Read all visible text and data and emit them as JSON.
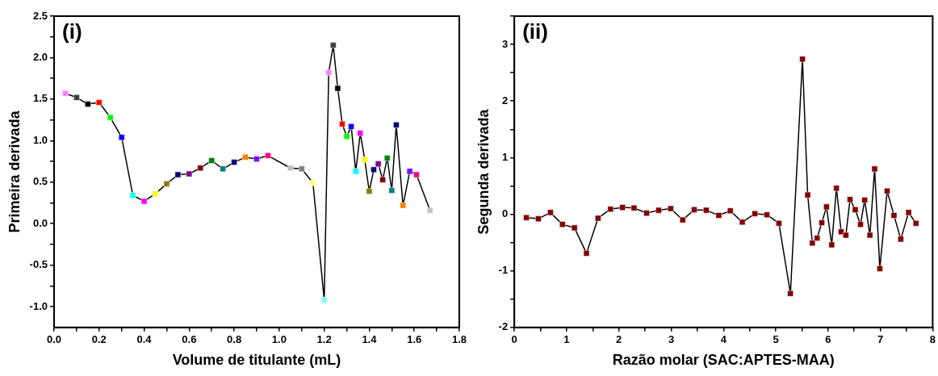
{
  "chart_data": [
    {
      "type": "line",
      "annotations": [
        "(i)"
      ],
      "xlabel": "Volume de titulante (mL)",
      "ylabel": "Primeira derivada",
      "marker": "square",
      "grid": false,
      "legend": false,
      "xlim": [
        0,
        1.8
      ],
      "xticks": [
        {
          "value": 0,
          "label": "0.0"
        },
        {
          "value": 0.1,
          "label": null
        },
        0.2,
        {
          "value": 0.3,
          "label": null
        },
        0.4,
        {
          "value": 0.5,
          "label": null
        },
        0.6,
        {
          "value": 0.7,
          "label": null
        },
        0.8,
        {
          "value": 0.9,
          "label": null
        },
        {
          "value": 1,
          "label": "1.0"
        },
        {
          "value": 1.1,
          "label": null
        },
        1.2,
        {
          "value": 1.3,
          "label": null
        },
        1.4,
        {
          "value": 1.5,
          "label": null
        },
        1.6,
        {
          "value": 1.7,
          "label": null
        },
        1.8
      ],
      "ylim": [
        -1.25,
        2.5
      ],
      "yticks": [
        {
          "value": -1,
          "label": "-1.0"
        },
        {
          "value": -0.75,
          "label": null
        },
        -0.5,
        {
          "value": -0.25,
          "label": null
        },
        {
          "value": 0,
          "label": "0.0"
        },
        {
          "value": 0.25,
          "label": null
        },
        0.5,
        {
          "value": 0.75,
          "label": null
        },
        {
          "value": 1,
          "label": "1.0"
        },
        {
          "value": 1.25,
          "label": null
        },
        1.5,
        {
          "value": 1.75,
          "label": null
        },
        {
          "value": 2,
          "label": "2.0"
        },
        {
          "value": 2.25,
          "label": null
        },
        2.5
      ],
      "series": [
        {
          "color": "#000000",
          "x": [
            0.05,
            0.1,
            0.15,
            0.2,
            0.25,
            0.3,
            0.35,
            0.4,
            0.45,
            0.5,
            0.55,
            0.6,
            0.65,
            0.7,
            0.75,
            0.8,
            0.85,
            0.9,
            0.95,
            1.05,
            1.1,
            1.15,
            1.2,
            1.22,
            1.24,
            1.26,
            1.28,
            1.3,
            1.32,
            1.34,
            1.36,
            1.38,
            1.4,
            1.42,
            1.44,
            1.46,
            1.48,
            1.5,
            1.52,
            1.55,
            1.58,
            1.61,
            1.67
          ],
          "values": [
            1.57,
            1.52,
            1.44,
            1.46,
            1.28,
            1.04,
            0.34,
            0.27,
            0.36,
            0.48,
            0.59,
            0.6,
            0.67,
            0.76,
            0.66,
            0.74,
            0.8,
            0.78,
            0.82,
            0.67,
            0.66,
            0.49,
            -0.92,
            1.82,
            2.15,
            1.63,
            1.2,
            1.05,
            1.17,
            0.63,
            1.09,
            0.77,
            0.39,
            0.65,
            0.72,
            0.53,
            0.79,
            0.4,
            1.19,
            0.22,
            0.63,
            0.59,
            0.16
          ],
          "colors": [
            "#ff80ff",
            "#404040",
            "#000000",
            "#ff0000",
            "#00ff00",
            "#0000ff",
            "#00ffff",
            "#ff00ff",
            "#ffff00",
            "#808000",
            "#000080",
            "#800080",
            "#800000",
            "#008000",
            "#008080",
            "#000080",
            "#ff8000",
            "#8000ff",
            "#ff0080",
            "#c0c0c0",
            "#808080",
            "#ffff80",
            "#80ffff",
            "#ff80ff",
            "#404040",
            "#000000",
            "#ff0000",
            "#00ff00",
            "#0000ff",
            "#00ffff",
            "#ff00ff",
            "#ffff00",
            "#808000",
            "#000080",
            "#800080",
            "#800000",
            "#008000",
            "#008080",
            "#000080",
            "#ff8000",
            "#8000ff",
            "#ff0080",
            "#c0c0c0"
          ]
        }
      ]
    },
    {
      "type": "line",
      "annotations": [
        "(ii)"
      ],
      "xlabel": "Razão molar (SAC:APTES-MAA)",
      "ylabel": "Segunda derivada",
      "marker": "square",
      "grid": false,
      "legend": false,
      "xlim": [
        0,
        8
      ],
      "xticks": [
        0,
        {
          "value": 0.5,
          "label": null
        },
        1,
        {
          "value": 1.5,
          "label": null
        },
        2,
        {
          "value": 2.5,
          "label": null
        },
        3,
        {
          "value": 3.5,
          "label": null
        },
        4,
        {
          "value": 4.5,
          "label": null
        },
        5,
        {
          "value": 5.5,
          "label": null
        },
        6,
        {
          "value": 6.5,
          "label": null
        },
        7,
        {
          "value": 7.5,
          "label": null
        },
        8
      ],
      "ylim": [
        -2,
        3.5
      ],
      "yticks": [
        -2,
        {
          "value": -1.5,
          "label": null
        },
        -1,
        {
          "value": -0.5,
          "label": null
        },
        0,
        {
          "value": 0.5,
          "label": null
        },
        1,
        {
          "value": 1.5,
          "label": null
        },
        2,
        {
          "value": 2.5,
          "label": null
        },
        3,
        {
          "value": 3.5,
          "label": null
        }
      ],
      "series": [
        {
          "color": "#000000",
          "x": [
            0.23,
            0.46,
            0.69,
            0.92,
            1.15,
            1.38,
            1.6,
            1.84,
            2.07,
            2.29,
            2.53,
            2.76,
            2.99,
            3.22,
            3.44,
            3.67,
            3.91,
            4.13,
            4.36,
            4.6,
            4.83,
            5.06,
            5.28,
            5.51,
            5.61,
            5.7,
            5.79,
            5.88,
            5.97,
            6.07,
            6.16,
            6.25,
            6.34,
            6.42,
            6.52,
            6.62,
            6.7,
            6.8,
            6.89,
            6.99,
            7.13,
            7.26,
            7.39,
            7.54,
            7.68
          ],
          "values": [
            -0.06,
            -0.08,
            0.03,
            -0.18,
            -0.24,
            -0.69,
            -0.07,
            0.09,
            0.12,
            0.11,
            0.02,
            0.07,
            0.1,
            -0.1,
            0.08,
            0.07,
            -0.02,
            0.06,
            -0.14,
            0.01,
            -0.01,
            -0.16,
            -1.4,
            2.74,
            0.34,
            -0.51,
            -0.42,
            -0.15,
            0.13,
            -0.54,
            0.46,
            -0.31,
            -0.37,
            0.26,
            0.08,
            -0.18,
            0.25,
            -0.37,
            0.8,
            -0.96,
            0.41,
            -0.02,
            -0.44,
            0.03,
            -0.16
          ],
          "colors": [
            "#800000",
            "#800000",
            "#800000",
            "#800000",
            "#800000",
            "#800000",
            "#800000",
            "#800000",
            "#800000",
            "#800000",
            "#800000",
            "#800000",
            "#800000",
            "#800000",
            "#800000",
            "#800000",
            "#800000",
            "#800000",
            "#800000",
            "#800000",
            "#800000",
            "#800000",
            "#800000",
            "#800000",
            "#800000",
            "#800000",
            "#800000",
            "#800000",
            "#800000",
            "#800000",
            "#800000",
            "#800000",
            "#800000",
            "#800000",
            "#800000",
            "#800000",
            "#800000",
            "#800000",
            "#800000",
            "#800000",
            "#800000",
            "#800000",
            "#800000",
            "#800000",
            "#800000"
          ]
        }
      ]
    }
  ]
}
